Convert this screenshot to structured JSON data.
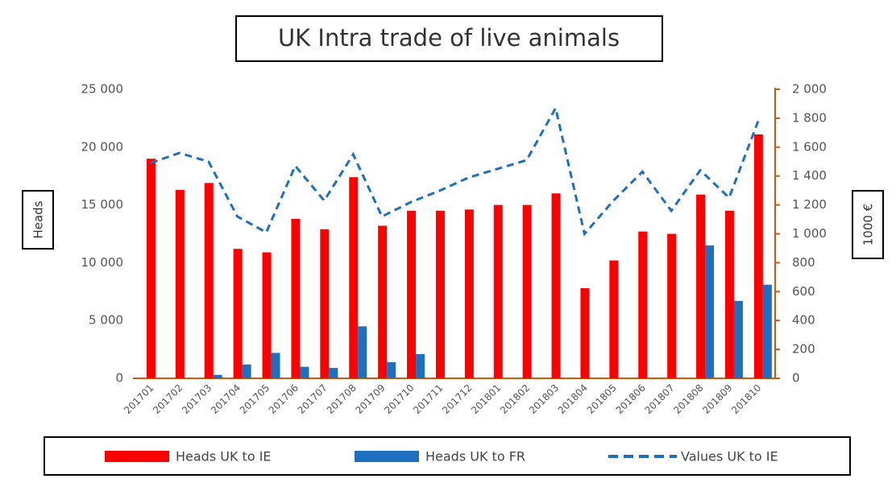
{
  "chart_data": {
    "type": "bar",
    "title": "UK Intra trade of live animals",
    "ylabel": "Heads",
    "y2label": "1000 €",
    "categories": [
      "201701",
      "201702",
      "201703",
      "201704",
      "201705",
      "201706",
      "201707",
      "201708",
      "201709",
      "201710",
      "201711",
      "201712",
      "201801",
      "201802",
      "201803",
      "201804",
      "201805",
      "201806",
      "201807",
      "201808",
      "201809",
      "201810"
    ],
    "series": [
      {
        "name": "Heads UK to IE",
        "color": "#ff0000",
        "values": [
          19000,
          16300,
          16900,
          11200,
          10900,
          13800,
          12900,
          17400,
          13200,
          14500,
          14500,
          14600,
          15000,
          15000,
          16000,
          7800,
          10200,
          12700,
          12500,
          15900,
          14500,
          21100
        ]
      },
      {
        "name": "Heads UK to FR",
        "color": "#1f6fc1",
        "values": [
          0,
          0,
          300,
          1200,
          2200,
          1000,
          900,
          4500,
          1400,
          2100,
          0,
          0,
          0,
          0,
          0,
          0,
          0,
          0,
          0,
          11500,
          6700,
          8100
        ]
      },
      {
        "name": "Values UK to IE",
        "color": "#1f6fc1",
        "type": "line",
        "axis": "y2",
        "values": [
          1490,
          1560,
          1500,
          1120,
          1010,
          1470,
          1230,
          1550,
          1120,
          1220,
          1300,
          1390,
          1450,
          1510,
          1870,
          1000,
          1230,
          1430,
          1160,
          1440,
          1250,
          1780
        ]
      }
    ],
    "ylim": [
      0,
      25000
    ],
    "yticks": [
      0,
      {
        "value": 5000,
        "label": "5 000"
      },
      {
        "value": 10000,
        "label": "10 000"
      },
      {
        "value": 15000,
        "label": "15 000"
      },
      {
        "value": 20000,
        "label": "20 000"
      },
      {
        "value": 25000,
        "label": "25 000"
      }
    ],
    "y2lim": [
      0,
      2000
    ],
    "y2ticks": [
      0,
      200,
      400,
      600,
      800,
      {
        "value": 1000,
        "label": "1 000"
      },
      {
        "value": 1200,
        "label": "1 200"
      },
      {
        "value": 1400,
        "label": "1 400"
      },
      {
        "value": 1600,
        "label": "1 600"
      },
      {
        "value": 1800,
        "label": "1 800"
      },
      {
        "value": 2000,
        "label": "2 000"
      }
    ],
    "legend": "bottom"
  }
}
